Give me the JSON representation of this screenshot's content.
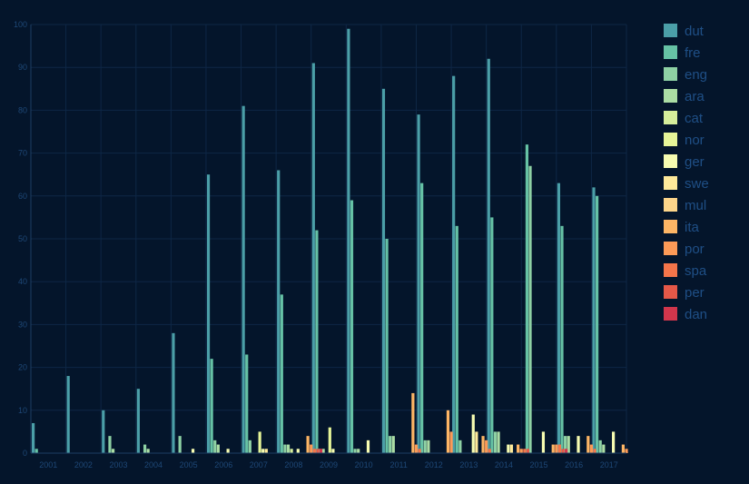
{
  "chart_data": {
    "type": "bar",
    "title": "",
    "xlabel": "",
    "ylabel": "",
    "ylim": [
      0,
      100
    ],
    "yticks": [
      0,
      10,
      20,
      30,
      40,
      50,
      60,
      70,
      80,
      90,
      100
    ],
    "grid": true,
    "legend_position": "right",
    "categories": [
      "2001",
      "2002",
      "2003",
      "2004",
      "2005",
      "2006",
      "2007",
      "2008",
      "2009",
      "2010",
      "2011",
      "2012",
      "2013",
      "2014",
      "2015",
      "2016",
      "2017"
    ],
    "series": [
      {
        "name": "dut",
        "color": "#4b9fa8",
        "values": [
          7,
          18,
          10,
          15,
          28,
          65,
          81,
          66,
          91,
          99,
          85,
          79,
          88,
          92,
          0,
          63,
          62
        ]
      },
      {
        "name": "fre",
        "color": "#66c2a5",
        "values": [
          1,
          0,
          0,
          0,
          0,
          22,
          23,
          37,
          52,
          59,
          50,
          63,
          53,
          55,
          72,
          53,
          60
        ]
      },
      {
        "name": "eng",
        "color": "#8ed1a4",
        "values": [
          0,
          0,
          4,
          2,
          4,
          3,
          3,
          2,
          1,
          1,
          4,
          3,
          3,
          5,
          67,
          4,
          3
        ]
      },
      {
        "name": "ara",
        "color": "#abdda4",
        "values": [
          0,
          0,
          1,
          1,
          0,
          2,
          0,
          2,
          1,
          1,
          4,
          3,
          0,
          5,
          0,
          4,
          2
        ]
      },
      {
        "name": "cat",
        "color": "#d6ee9b",
        "values": [
          0,
          0,
          0,
          0,
          0,
          0,
          0,
          1,
          0,
          0,
          0,
          0,
          0,
          0,
          0,
          0,
          0
        ]
      },
      {
        "name": "nor",
        "color": "#e6f598",
        "values": [
          0,
          0,
          0,
          0,
          0,
          0,
          5,
          0,
          6,
          0,
          0,
          0,
          0,
          0,
          0,
          0,
          0
        ]
      },
      {
        "name": "ger",
        "color": "#f7fcb1",
        "values": [
          0,
          0,
          0,
          0,
          1,
          1,
          1,
          1,
          1,
          3,
          0,
          0,
          9,
          2,
          5,
          4,
          5
        ]
      },
      {
        "name": "swe",
        "color": "#fee99a",
        "values": [
          0,
          0,
          0,
          0,
          0,
          0,
          1,
          0,
          0,
          0,
          0,
          0,
          5,
          2,
          0,
          0,
          0
        ]
      },
      {
        "name": "mul",
        "color": "#fdd58a",
        "values": [
          0,
          0,
          0,
          0,
          0,
          0,
          0,
          0,
          0,
          0,
          0,
          0,
          0,
          0,
          0,
          0,
          0
        ]
      },
      {
        "name": "ita",
        "color": "#fdb565",
        "values": [
          0,
          0,
          0,
          0,
          0,
          0,
          0,
          4,
          0,
          0,
          14,
          10,
          4,
          2,
          2,
          4,
          2
        ]
      },
      {
        "name": "por",
        "color": "#fc9a57",
        "values": [
          0,
          0,
          0,
          0,
          0,
          0,
          0,
          2,
          0,
          0,
          2,
          5,
          3,
          1,
          2,
          2,
          1
        ]
      },
      {
        "name": "spa",
        "color": "#f4754a",
        "values": [
          0,
          0,
          0,
          0,
          0,
          0,
          0,
          1,
          0,
          0,
          1,
          0,
          1,
          1,
          2,
          1,
          0
        ]
      },
      {
        "name": "per",
        "color": "#e55848",
        "values": [
          0,
          0,
          0,
          0,
          0,
          0,
          0,
          1,
          0,
          0,
          0,
          0,
          0,
          1,
          1,
          0,
          0
        ]
      },
      {
        "name": "dan",
        "color": "#d2364c",
        "values": [
          0,
          0,
          0,
          0,
          0,
          0,
          0,
          1,
          0,
          0,
          0,
          0,
          0,
          0,
          1,
          0,
          0
        ]
      }
    ]
  }
}
